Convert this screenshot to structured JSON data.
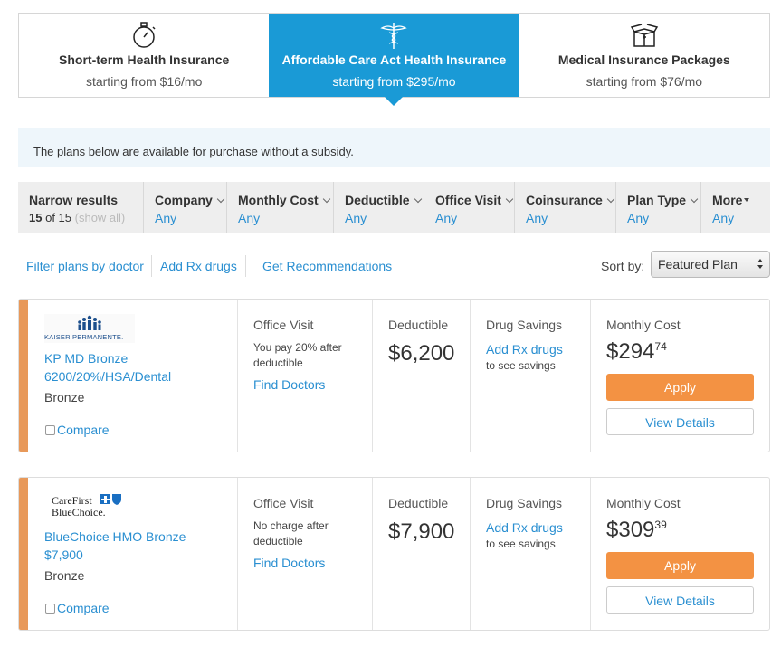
{
  "tabs": [
    {
      "title": "Short-term Health Insurance",
      "price": "starting from $16/mo"
    },
    {
      "title": "Affordable Care Act Health Insurance",
      "price": "starting from $295/mo"
    },
    {
      "title": "Medical Insurance Packages",
      "price": "starting from $76/mo"
    }
  ],
  "notice": "The plans below are available for purchase without a subsidy.",
  "filters": {
    "narrow": {
      "label": "Narrow results",
      "count": "15",
      "of": "of 15",
      "show_all": "(show all)"
    },
    "columns": [
      {
        "label": "Company",
        "value": "Any"
      },
      {
        "label": "Monthly Cost",
        "value": "Any"
      },
      {
        "label": "Deductible",
        "value": "Any"
      },
      {
        "label": "Office Visit",
        "value": "Any"
      },
      {
        "label": "Coinsurance",
        "value": "Any"
      },
      {
        "label": "Plan Type",
        "value": "Any"
      },
      {
        "label": "More",
        "value": "Any"
      }
    ]
  },
  "links": [
    "Filter plans by doctor",
    "Add Rx drugs",
    "Get Recommendations"
  ],
  "sort": {
    "label": "Sort by:",
    "value": "Featured Plan"
  },
  "plans": [
    {
      "logo": [
        "KAISER PERMANENTE."
      ],
      "name": "KP MD Bronze 6200/20%/HSA/Dental",
      "metal": "Bronze",
      "compare": "Compare",
      "office_visit_label": "Office Visit",
      "office_visit": "You pay 20% after deductible",
      "find_doctors": "Find Doctors",
      "deductible_label": "Deductible",
      "deductible": "$6,200",
      "drug_label": "Drug Savings",
      "drug_link": "Add Rx drugs",
      "drug_note": "to see savings",
      "cost_label": "Monthly Cost",
      "cost_dollars": "$294",
      "cost_cents": "74",
      "apply": "Apply",
      "details": "View Details"
    },
    {
      "logo": [
        "CareFirst",
        "BlueChoice."
      ],
      "name": "BlueChoice HMO Bronze $7,900",
      "metal": "Bronze",
      "compare": "Compare",
      "office_visit_label": "Office Visit",
      "office_visit": "No charge after deductible",
      "find_doctors": "Find Doctors",
      "deductible_label": "Deductible",
      "deductible": "$7,900",
      "drug_label": "Drug Savings",
      "drug_link": "Add Rx drugs",
      "drug_note": "to see savings",
      "cost_label": "Monthly Cost",
      "cost_dollars": "$309",
      "cost_cents": "39",
      "apply": "Apply",
      "details": "View Details"
    }
  ]
}
